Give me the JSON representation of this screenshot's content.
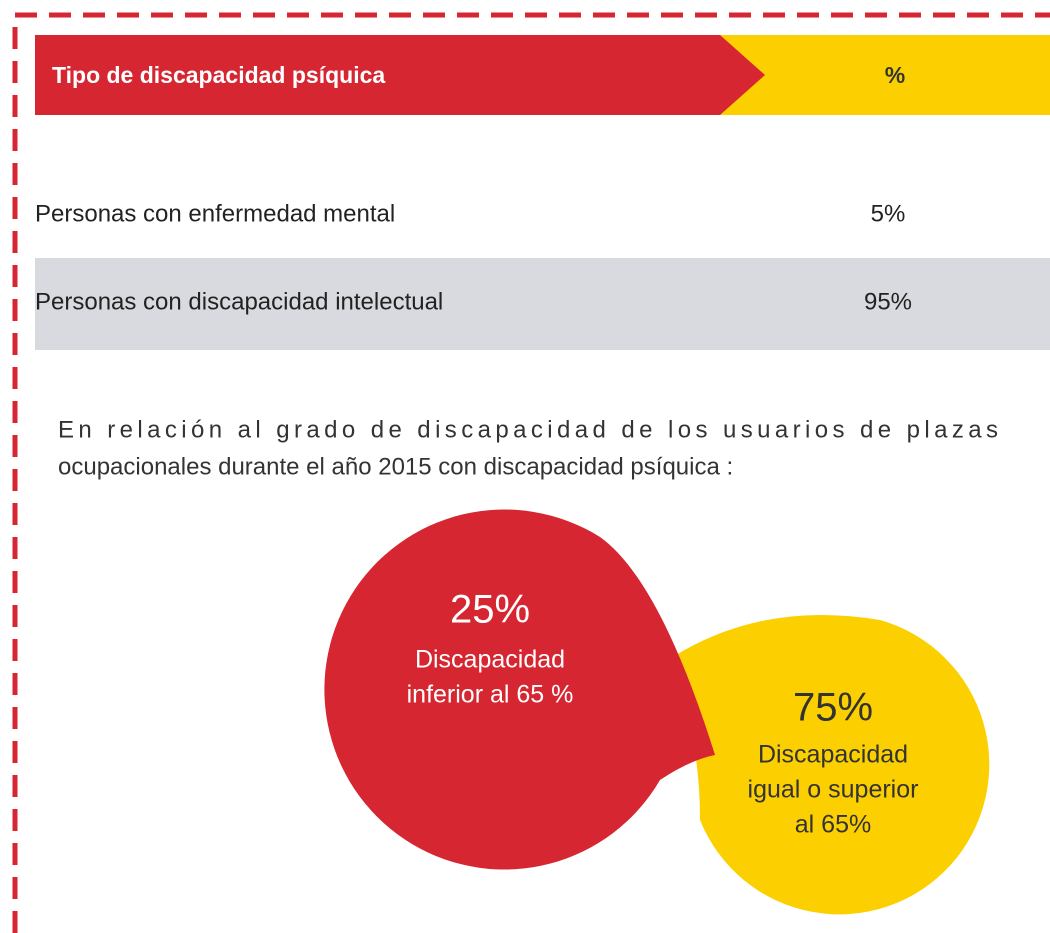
{
  "header": {
    "title": "Tipo de discapacidad psíquica",
    "percent": "%"
  },
  "table": {
    "rows": [
      [
        "Personas con enfermedad mental",
        "5%"
      ],
      [
        "Personas con discapacidad intelectual",
        "95%"
      ]
    ]
  },
  "paragraph": {
    "lines": [
      "En relación al grado de discapacidad de los usuarios de plazas",
      "ocupacionales durante el año 2015 con discapacidad psíquica :"
    ]
  },
  "bubbles": [
    {
      "value": "25%",
      "lines": [
        "Discapacidad",
        "inferior al 65 %"
      ]
    },
    {
      "value": "75%",
      "lines": [
        "Discapacidad",
        "igual o superior",
        "al 65%"
      ]
    }
  ]
}
